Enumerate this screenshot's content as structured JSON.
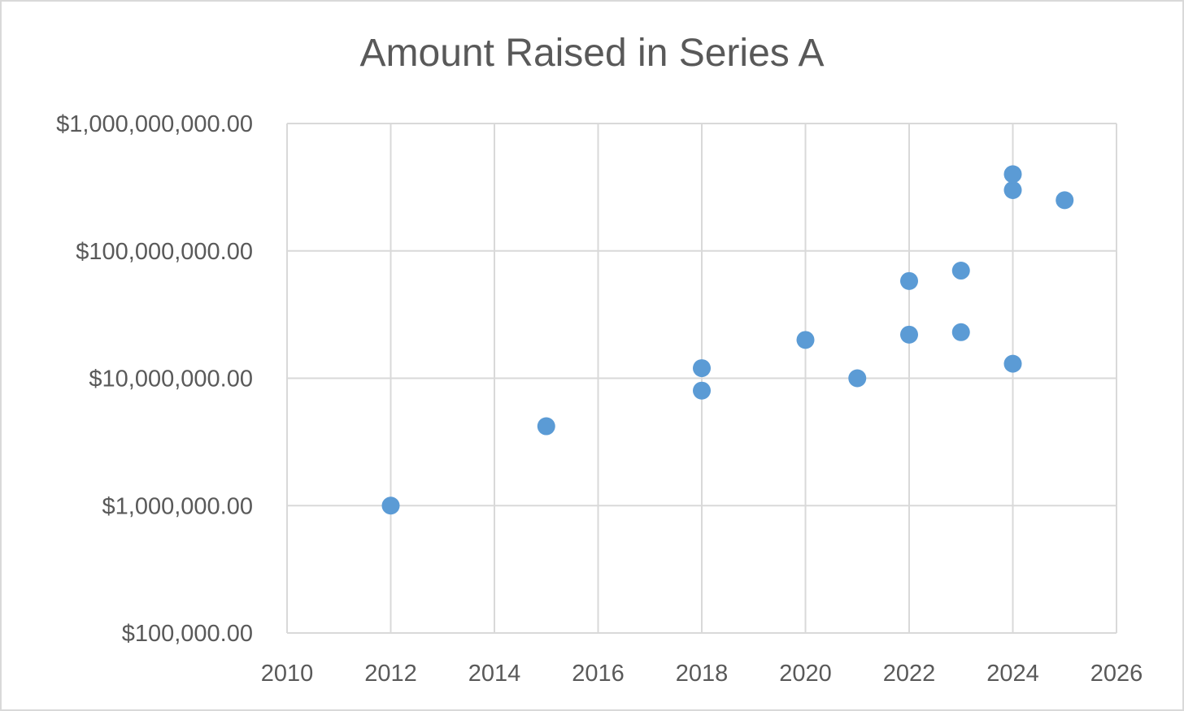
{
  "chart_data": {
    "type": "scatter",
    "title": "Amount Raised in Series A",
    "xlabel": "",
    "ylabel": "",
    "x_scale": "linear",
    "y_scale": "log",
    "xlim": [
      2010,
      2026
    ],
    "ylim": [
      100000,
      1000000000
    ],
    "grid": true,
    "legend": "none",
    "point_color": "#5b9bd5",
    "grid_color": "#d9d9d9",
    "x_ticks": [
      2010,
      2012,
      2014,
      2016,
      2018,
      2020,
      2022,
      2024,
      2026
    ],
    "x_tick_labels": [
      "2010",
      "2012",
      "2014",
      "2016",
      "2018",
      "2020",
      "2022",
      "2024",
      "2026"
    ],
    "y_ticks": [
      100000,
      1000000,
      10000000,
      100000000,
      1000000000
    ],
    "y_tick_labels": [
      "$100,000.00",
      "$1,000,000.00",
      "$10,000,000.00",
      "$100,000,000.00",
      "$1,000,000,000.00"
    ],
    "points": [
      {
        "x": 2012,
        "y": 1000000
      },
      {
        "x": 2015,
        "y": 4200000
      },
      {
        "x": 2018,
        "y": 12000000
      },
      {
        "x": 2018,
        "y": 8000000
      },
      {
        "x": 2020,
        "y": 20000000
      },
      {
        "x": 2021,
        "y": 10000000
      },
      {
        "x": 2022,
        "y": 22000000
      },
      {
        "x": 2022,
        "y": 58000000
      },
      {
        "x": 2023,
        "y": 23000000
      },
      {
        "x": 2023,
        "y": 70000000
      },
      {
        "x": 2024,
        "y": 13000000
      },
      {
        "x": 2024,
        "y": 300000000
      },
      {
        "x": 2024,
        "y": 400000000
      },
      {
        "x": 2025,
        "y": 250000000
      }
    ]
  }
}
